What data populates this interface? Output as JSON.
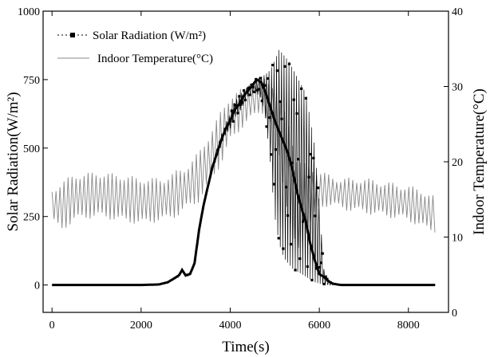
{
  "chart_data": {
    "type": "line",
    "x_label": "Time(s)",
    "y_left_label": "Solar Radiation(W/m²)",
    "y_right_label": "Indoor Temperature(°C)",
    "x_range": [
      -200,
      8900
    ],
    "y_left_range": [
      -100,
      1000
    ],
    "y_right_range": [
      0,
      40
    ],
    "x_ticks": [
      0,
      2000,
      4000,
      6000,
      8000
    ],
    "y_left_ticks": [
      0,
      250,
      500,
      750,
      1000
    ],
    "y_right_ticks": [
      0,
      10,
      20,
      30,
      40
    ],
    "legend_position": "top-left",
    "legend": [
      {
        "label": "Solar Radiation (W/m²)",
        "marker": "square",
        "series": "solar"
      },
      {
        "label": "Indoor Temperature(°C)",
        "marker": "line",
        "series": "temperature"
      }
    ],
    "series": [
      {
        "name": "Solar Radiation (W/m²)",
        "axis": "left",
        "color": "#000000",
        "style": "dense square markers with thin connecting line",
        "x": [
          0,
          500,
          1000,
          1500,
          2000,
          2400,
          2600,
          2750,
          2850,
          2920,
          3000,
          3100,
          3200,
          3300,
          3400,
          3500,
          3600,
          3700,
          3800,
          3900,
          4000,
          4100,
          4200,
          4300,
          4400,
          4500,
          4600,
          4700,
          4800,
          4900,
          5000,
          5100,
          5200,
          5300,
          5400,
          5500,
          5600,
          5700,
          5800,
          5900,
          6000,
          6100,
          6200,
          6300,
          6400,
          6500,
          7000,
          7500,
          8000,
          8600
        ],
        "y": [
          0,
          0,
          0,
          0,
          0,
          2,
          10,
          25,
          35,
          55,
          35,
          40,
          80,
          200,
          290,
          360,
          430,
          480,
          530,
          570,
          600,
          640,
          660,
          690,
          710,
          730,
          750,
          740,
          700,
          650,
          600,
          560,
          520,
          480,
          420,
          340,
          280,
          230,
          150,
          90,
          40,
          30,
          15,
          5,
          2,
          0,
          0,
          0,
          0,
          0
        ],
        "upper_envelope": [
          0,
          0,
          0,
          0,
          0,
          3,
          12,
          28,
          40,
          60,
          40,
          45,
          90,
          210,
          300,
          370,
          440,
          500,
          550,
          590,
          630,
          670,
          690,
          710,
          725,
          740,
          755,
          760,
          770,
          785,
          820,
          860,
          840,
          820,
          790,
          760,
          730,
          700,
          600,
          500,
          300,
          60,
          20,
          8,
          3,
          0,
          0,
          0,
          0,
          0
        ],
        "lower_envelope": [
          0,
          0,
          0,
          0,
          0,
          0,
          8,
          20,
          30,
          50,
          30,
          35,
          70,
          190,
          280,
          350,
          420,
          460,
          510,
          550,
          570,
          610,
          630,
          660,
          690,
          700,
          700,
          680,
          600,
          450,
          250,
          150,
          100,
          80,
          60,
          50,
          40,
          30,
          20,
          10,
          5,
          2,
          0,
          0,
          0,
          0,
          0,
          0,
          0,
          0
        ]
      },
      {
        "name": "Indoor Temperature(°C)",
        "axis": "right",
        "color": "#888888",
        "style": "thin oscillating line",
        "x": [
          0,
          200,
          500,
          1000,
          1500,
          2000,
          2500,
          2800,
          3000,
          3300,
          3500,
          3800,
          4000,
          4300,
          4500,
          4700,
          5000,
          5300,
          5500,
          5800,
          6000,
          6200,
          6500,
          7000,
          7500,
          8000,
          8300,
          8600
        ],
        "upper": [
          16,
          17,
          18,
          18.3,
          18,
          17.5,
          17.5,
          18.5,
          19,
          21,
          23,
          26.5,
          28.5,
          29.5,
          30,
          31,
          30,
          25,
          20,
          19,
          18.5,
          18,
          17.5,
          17.5,
          17,
          16.5,
          16,
          15
        ],
        "lower": [
          12.5,
          11,
          12.5,
          13,
          12.5,
          12,
          12.5,
          13,
          14,
          15,
          17,
          20,
          23,
          25,
          26,
          27,
          24,
          13,
          8,
          12,
          14,
          14.5,
          14,
          13.5,
          13,
          12.5,
          11.5,
          11
        ]
      }
    ]
  }
}
